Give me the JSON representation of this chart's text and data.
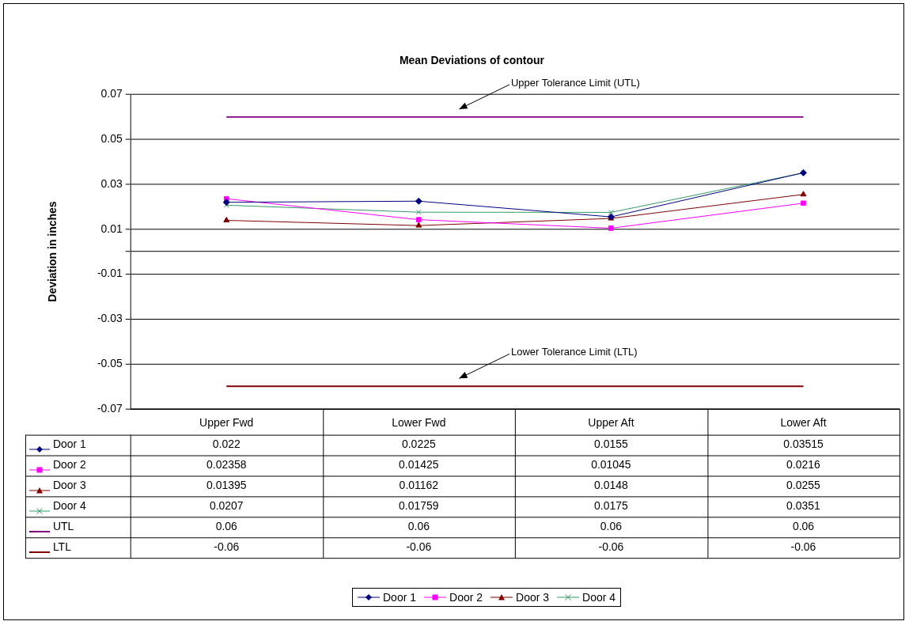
{
  "chart_data": {
    "type": "line",
    "title": "Mean Deviations of contour",
    "ylabel": "Deviation in inches",
    "categories": [
      "Upper Fwd",
      "Lower Fwd",
      "Upper Aft",
      "Lower Aft"
    ],
    "series": [
      {
        "name": "Door 1",
        "color": "#000080",
        "marker": "diamond",
        "values": [
          0.022,
          0.0225,
          0.0155,
          0.03515
        ]
      },
      {
        "name": "Door 2",
        "color": "#ff00ff",
        "marker": "square",
        "values": [
          0.02358,
          0.01425,
          0.01045,
          0.0216
        ]
      },
      {
        "name": "Door 3",
        "color": "#800000",
        "marker": "triangle",
        "values": [
          0.01395,
          0.01162,
          0.0148,
          0.0255
        ]
      },
      {
        "name": "Door 4",
        "color": "#339966",
        "marker": "cross",
        "values": [
          0.0207,
          0.01759,
          0.0175,
          0.0351
        ]
      },
      {
        "name": "UTL",
        "color": "#800080",
        "marker": "none",
        "values": [
          0.06,
          0.06,
          0.06,
          0.06
        ]
      },
      {
        "name": "LTL",
        "color": "#800000",
        "marker": "none",
        "values": [
          -0.06,
          -0.06,
          -0.06,
          -0.06
        ]
      }
    ],
    "ylim": [
      -0.07,
      0.07
    ],
    "yticks": [
      -0.07,
      -0.05,
      -0.03,
      -0.01,
      {
        "value": 0,
        "label": null
      },
      0.01,
      0.03,
      0.05,
      0.07
    ],
    "grid": "y",
    "legend": "bottom",
    "data_labels": true,
    "annotations": [
      {
        "text": "Upper Tolerance Limit (UTL)",
        "y": 0.06
      },
      {
        "text": "Lower Tolerance Limit (LTL)",
        "y": -0.06
      }
    ]
  }
}
